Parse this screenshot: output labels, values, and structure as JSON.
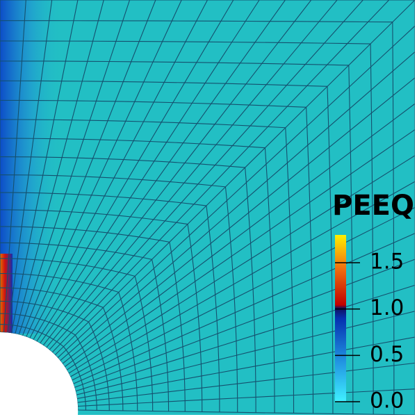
{
  "colorbar": {
    "title": "PEEQ",
    "range": [
      0,
      1.8
    ],
    "ticks": [
      {
        "value": 0,
        "label": "0.0"
      },
      {
        "value": 0.5,
        "label": "0.5"
      },
      {
        "value": 1,
        "label": "1.0"
      },
      {
        "value": 1.5,
        "label": "1.5"
      }
    ]
  }
}
